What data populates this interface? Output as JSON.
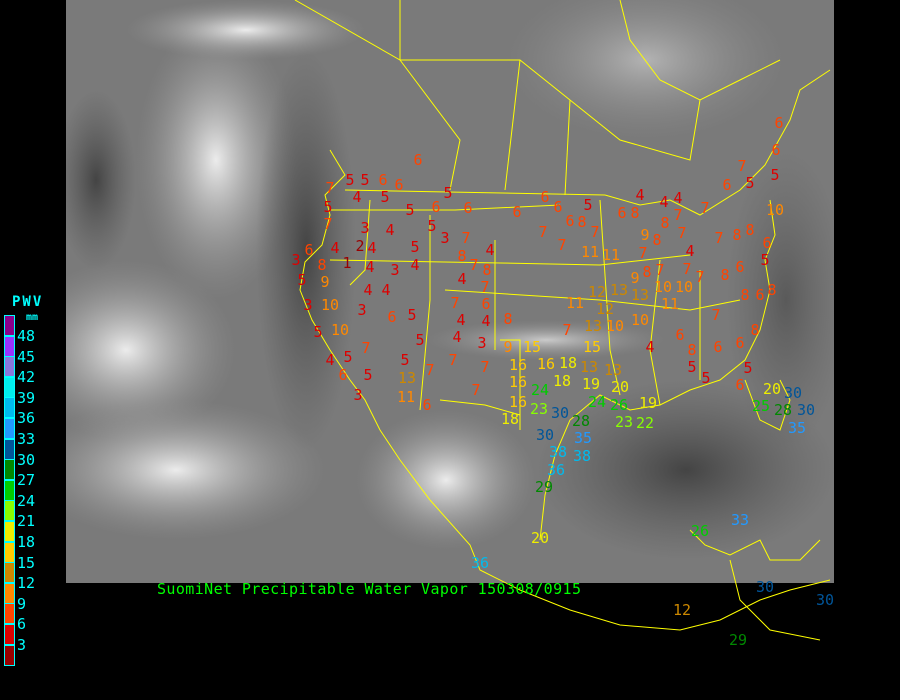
{
  "legend": {
    "title": "PWV",
    "unit": "mm",
    "labels": [
      "48",
      "45",
      "42",
      "39",
      "36",
      "33",
      "30",
      "27",
      "24",
      "21",
      "18",
      "15",
      "12",
      "9",
      "6",
      "3"
    ],
    "colors": [
      "#8b008b",
      "#9933ff",
      "#8877dd",
      "#00eeee",
      "#00bbee",
      "#2299ff",
      "#005599",
      "#008800",
      "#00cc00",
      "#88ff00",
      "#eeee00",
      "#ffcc00",
      "#cc8800",
      "#ff8800",
      "#ff4400",
      "#dd0000",
      "#990000"
    ]
  },
  "caption": "SuomiNet Precipitable Water Vapor 150308/0915",
  "colors": {
    "boundaries": "#ffff00",
    "caption": "#00ff00",
    "legend_text": "#00ffff"
  },
  "stations": {
    "values": [
      6,
      7,
      5,
      5,
      6,
      4,
      5,
      6,
      5,
      7,
      3,
      4,
      2,
      5,
      6,
      5,
      6,
      5,
      3,
      7,
      8,
      7,
      8,
      4,
      4,
      7,
      6,
      3,
      4,
      1,
      4,
      3,
      4,
      5,
      4,
      8,
      5,
      9,
      3,
      10,
      3,
      4,
      4,
      6,
      5,
      10,
      5,
      7,
      5,
      4,
      6,
      5,
      3,
      5,
      5,
      13,
      7,
      11,
      6,
      7,
      6,
      4,
      4,
      8,
      4,
      3,
      7,
      7,
      7,
      9,
      15,
      16,
      16,
      16,
      18,
      18,
      13,
      19,
      13,
      20,
      15,
      24,
      24,
      16,
      23,
      30,
      28,
      26,
      23,
      19,
      18,
      30,
      38,
      35,
      38,
      36,
      29,
      20,
      6,
      6,
      6,
      6,
      7,
      7,
      7,
      11,
      11,
      5,
      11,
      12,
      12,
      13,
      10,
      13,
      7,
      13,
      10,
      9,
      8,
      7,
      7,
      10,
      11,
      10,
      7,
      4,
      7,
      9,
      8,
      8,
      8,
      7,
      7,
      7,
      4,
      4,
      4,
      6,
      8,
      7,
      8,
      8,
      6,
      8,
      8,
      6,
      8,
      5,
      6,
      10,
      5,
      6,
      6,
      5,
      6,
      7,
      7,
      6,
      4,
      8,
      5,
      6,
      6,
      8,
      5,
      5,
      6,
      20,
      25,
      28,
      30,
      30,
      35,
      33,
      26,
      12,
      30,
      30,
      29,
      36,
      22
    ]
  }
}
